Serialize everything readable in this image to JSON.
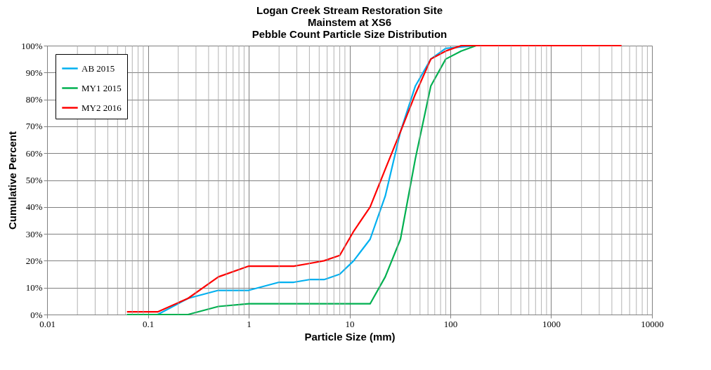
{
  "chart_data": {
    "type": "line",
    "title": "Logan Creek Stream Restoration Site\nMainstem at XS6\nPebble Count Particle Size Distribution",
    "xlabel": "Particle Size (mm)",
    "ylabel": "Cumulative Percent",
    "log": "x",
    "grid": true,
    "legend": "top left",
    "marker": "none",
    "line_style": "solid",
    "xlim": [
      0.01,
      10000
    ],
    "xticks": [
      0.01,
      0.1,
      1,
      10,
      100,
      1000,
      10000
    ],
    "ylim": [
      0,
      100
    ],
    "yticks": [
      {
        "value": 0,
        "label": "0%"
      },
      {
        "value": 10,
        "label": "10%"
      },
      {
        "value": 20,
        "label": "20%"
      },
      {
        "value": 30,
        "label": "30%"
      },
      {
        "value": 40,
        "label": "40%"
      },
      {
        "value": 50,
        "label": "50%"
      },
      {
        "value": 60,
        "label": "60%"
      },
      {
        "value": 70,
        "label": "70%"
      },
      {
        "value": 80,
        "label": "80%"
      },
      {
        "value": 90,
        "label": "90%"
      },
      {
        "value": 100,
        "label": "100%"
      }
    ],
    "series": [
      {
        "name": "AB 2015",
        "color": "#00b0f0",
        "x": [
          0.125,
          0.25,
          0.5,
          1,
          2,
          2.8,
          4,
          5.6,
          8,
          11,
          16,
          22.6,
          32,
          45,
          64,
          90,
          180
        ],
        "values": [
          0,
          6,
          9,
          9,
          12,
          12,
          13,
          13,
          15,
          20,
          28,
          44,
          68,
          85,
          95,
          99,
          100
        ]
      },
      {
        "name": "MY1 2015",
        "color": "#00b050",
        "x": [
          0.062,
          0.125,
          0.25,
          0.5,
          1,
          2,
          2.8,
          4,
          5.6,
          8,
          11,
          16,
          22.6,
          32,
          45,
          64,
          90,
          128,
          180
        ],
        "values": [
          0,
          0,
          0,
          3,
          4,
          4,
          4,
          4,
          4,
          4,
          4,
          4,
          14,
          28,
          58,
          85,
          95,
          98,
          100
        ]
      },
      {
        "name": "MY2 2016",
        "color": "#ff0000",
        "x": [
          0.062,
          0.125,
          0.25,
          0.5,
          1,
          2,
          2.8,
          4,
          5.6,
          8,
          11,
          16,
          22.6,
          32,
          45,
          64,
          90,
          128,
          180,
          5000
        ],
        "values": [
          1,
          1,
          6,
          14,
          18,
          18,
          18,
          19,
          20,
          22,
          31,
          40,
          54,
          68,
          82,
          95,
          98,
          100,
          100,
          100
        ]
      }
    ]
  }
}
